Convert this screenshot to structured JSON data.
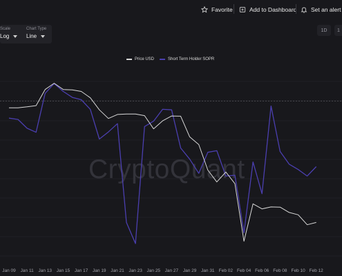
{
  "toolbar": {
    "favorite_label": "Favorite",
    "dashboard_label": "Add to Dashboard",
    "alert_label": "Set an alert"
  },
  "controls": {
    "scale_label": "Scale",
    "scale_value": "Log",
    "chart_type_label": "Chart Type",
    "chart_type_value": "Line"
  },
  "ranges": [
    "1D",
    "1"
  ],
  "watermark": "CryptoQuant",
  "colors": {
    "background": "#18181c",
    "price": "#d9d9d9",
    "sopr": "#4b3fb0",
    "grid": "#2a2a30",
    "reference_line": "#55555c"
  },
  "chart_data": {
    "type": "line",
    "title": "",
    "xlabel": "",
    "ylabel": "",
    "ylim": [
      0,
      100
    ],
    "log_scale": true,
    "grid": true,
    "legend_placement": "top-center",
    "x_tick_labels": [
      "Jan 09",
      "Jan 11",
      "Jan 13",
      "Jan 15",
      "Jan 17",
      "Jan 19",
      "Jan 21",
      "Jan 23",
      "Jan 25",
      "Jan 27",
      "Jan 29",
      "Jan 31",
      "Feb 02",
      "Feb 04",
      "Feb 06",
      "Feb 08",
      "Feb 10",
      "Feb 12"
    ],
    "x": [
      "Jan 09",
      "Jan 10",
      "Jan 11",
      "Jan 12",
      "Jan 13",
      "Jan 14",
      "Jan 15",
      "Jan 16",
      "Jan 17",
      "Jan 18",
      "Jan 19",
      "Jan 20",
      "Jan 21",
      "Jan 22",
      "Jan 23",
      "Jan 24",
      "Jan 25",
      "Jan 26",
      "Jan 27",
      "Jan 28",
      "Jan 29",
      "Jan 30",
      "Jan 31",
      "Feb 01",
      "Feb 02",
      "Feb 03",
      "Feb 04",
      "Feb 05",
      "Feb 06",
      "Feb 07",
      "Feb 08",
      "Feb 09",
      "Feb 10",
      "Feb 11",
      "Feb 12"
    ],
    "series": [
      {
        "name": "Price USD",
        "color": "#d9d9d9",
        "values": [
          79.8,
          79.8,
          80.3,
          80.9,
          89.3,
          92.6,
          89.3,
          89.1,
          88.3,
          85.0,
          78.7,
          74.2,
          76.3,
          76.5,
          76.5,
          75.7,
          68.8,
          73.0,
          75.5,
          75.4,
          64.6,
          60.6,
          47.3,
          41.1,
          46.3,
          40.2,
          10.2,
          29.7,
          27.1,
          28.1,
          28.0,
          25.2,
          24.0,
          18.8,
          20.0
        ]
      },
      {
        "name": "Short Term Holder SOPR",
        "color": "#4b3fb0",
        "values": [
          74.4,
          73.7,
          69.1,
          67.0,
          87.3,
          92.4,
          88.3,
          85.2,
          84.0,
          79.0,
          63.5,
          67.2,
          71.5,
          20.0,
          9.0,
          70.0,
          72.8,
          79.0,
          78.7,
          58.8,
          53.0,
          45.6,
          56.6,
          57.4,
          44.2,
          44.6,
          14.6,
          51.5,
          35.0,
          80.7,
          57.0,
          50.4,
          47.6,
          44.2,
          49.1
        ]
      }
    ]
  }
}
